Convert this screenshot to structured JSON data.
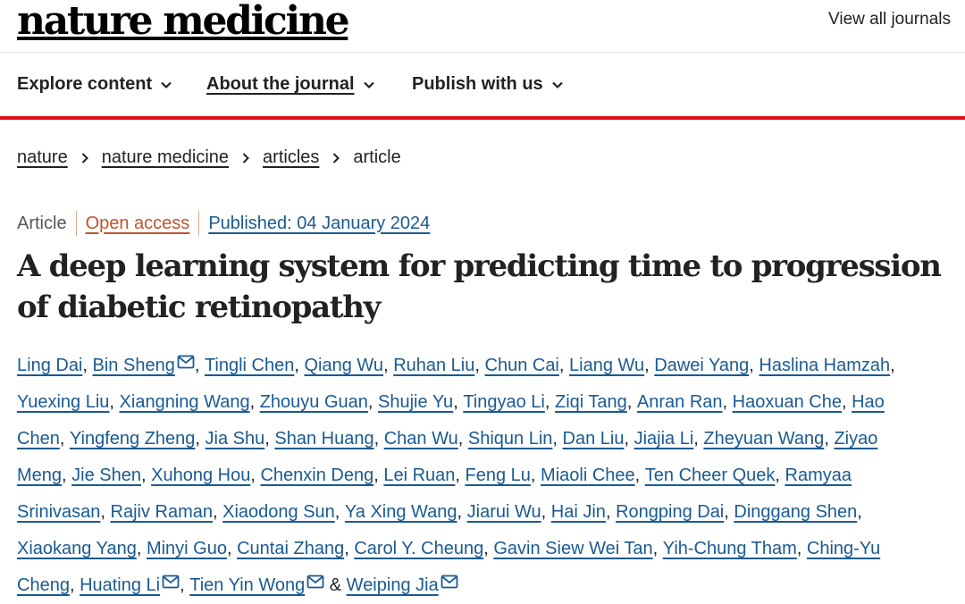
{
  "header": {
    "logo": "nature medicine",
    "view_all": "View all journals"
  },
  "nav": {
    "items": [
      {
        "label": "Explore content"
      },
      {
        "label": "About the journal"
      },
      {
        "label": "Publish with us"
      }
    ]
  },
  "breadcrumb": {
    "items": [
      "nature",
      "nature medicine",
      "articles"
    ],
    "current": "article"
  },
  "article": {
    "type": "Article",
    "access": "Open access",
    "published": "Published: 04 January 2024",
    "title": "A deep learning system for predicting time to progression of diabetic retinopathy"
  },
  "authors": [
    "Ling Dai",
    "Bin Sheng",
    "Tingli Chen",
    "Qiang Wu",
    "Ruhan Liu",
    "Chun Cai",
    "Liang Wu",
    "Dawei Yang",
    "Haslina Hamzah",
    "Yuexing Liu",
    "Xiangning Wang",
    "Zhouyu Guan",
    "Shujie Yu",
    "Tingyao Li",
    "Ziqi Tang",
    "Anran Ran",
    "Haoxuan Che",
    "Hao Chen",
    "Yingfeng Zheng",
    "Jia Shu",
    "Shan Huang",
    "Chan Wu",
    "Shiqun Lin",
    "Dan Liu",
    "Jiajia Li",
    "Zheyuan Wang",
    "Ziyao Meng",
    "Jie Shen",
    "Xuhong Hou",
    "Chenxin Deng",
    "Lei Ruan",
    "Feng Lu",
    "Miaoli Chee",
    "Ten Cheer Quek",
    "Ramyaa Srinivasan",
    "Rajiv Raman",
    "Xiaodong Sun",
    "Ya Xing Wang",
    "Jiarui Wu",
    "Hai Jin",
    "Rongping Dai",
    "Dinggang Shen",
    "Xiaokang Yang",
    "Minyi Guo",
    "Cuntai Zhang",
    "Carol Y. Cheung",
    "Gavin Siew Wei Tan",
    "Yih-Chung Tham",
    "Ching-Yu Cheng",
    "Huating Li",
    "Tien Yin Wong",
    "Weiping Jia"
  ],
  "corresponding_authors": [
    "Bin Sheng",
    "Huating Li",
    "Tien Yin Wong",
    "Weiping Jia"
  ],
  "colors": {
    "accent_red": "#e0101e",
    "link_blue": "#1a5a92",
    "open_access": "#c0522c"
  },
  "icons": {
    "nav_dropdown": "chevron-down-icon",
    "breadcrumb_separator": "chevron-right-icon",
    "corresponding": "envelope-icon"
  }
}
